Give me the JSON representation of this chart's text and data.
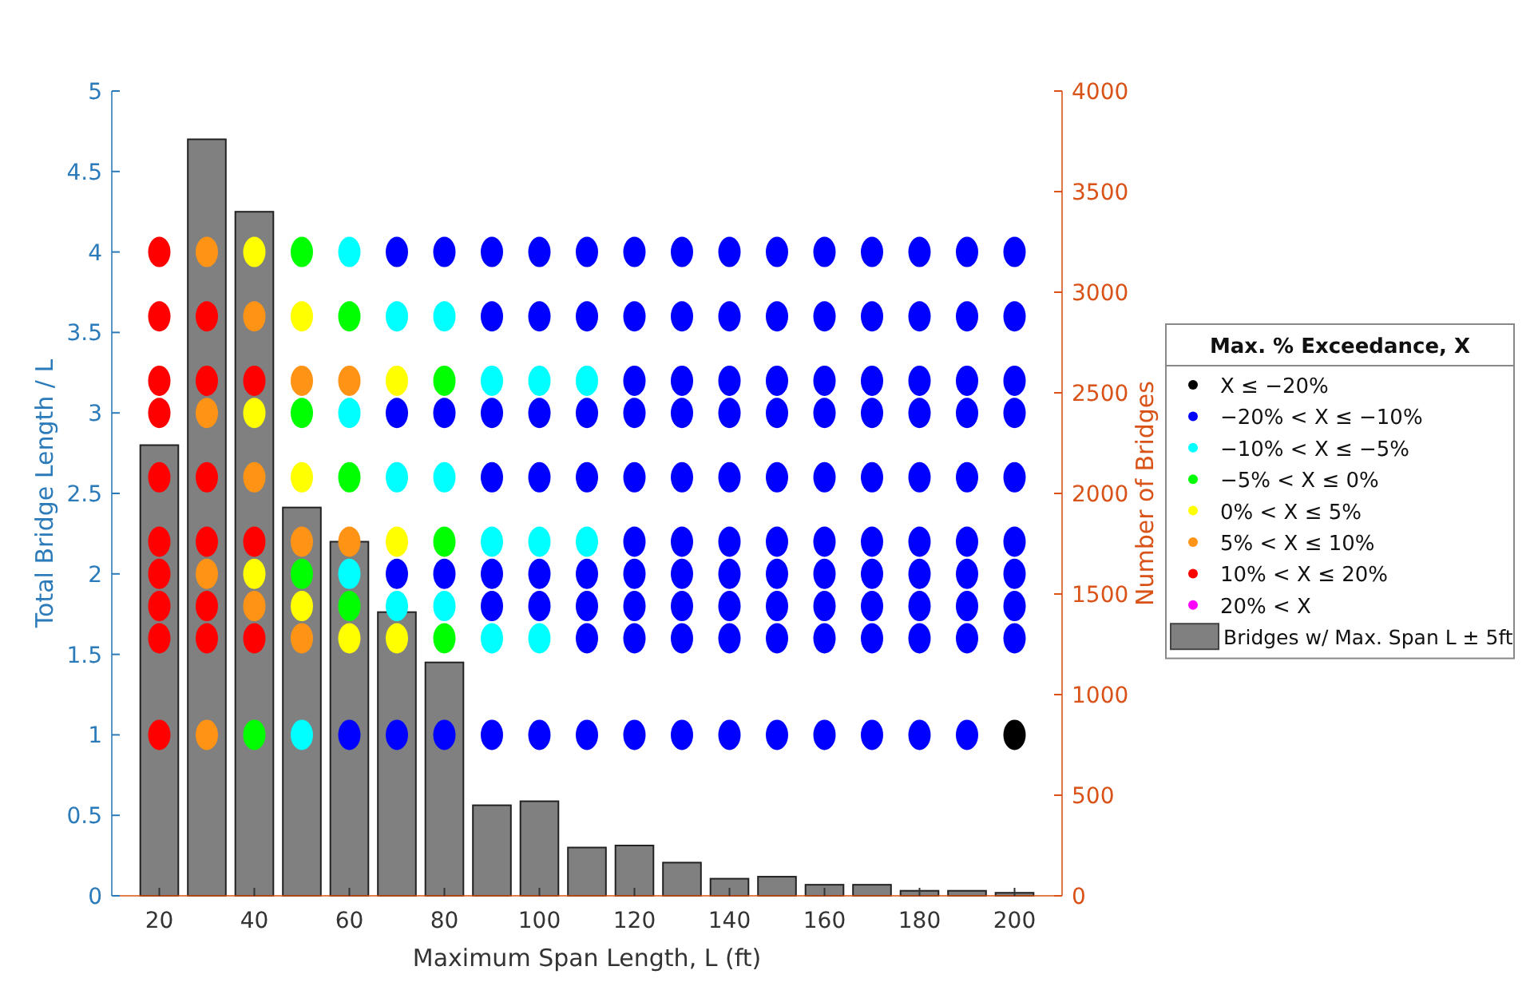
{
  "chart_data": {
    "type": "scatter",
    "xlabel": "Maximum Span Length, L (ft)",
    "ylabel": "Total Bridge Length / L",
    "y2label": "Number of Bridges",
    "legend_title": "Max. % Exceedance, X",
    "legend": "right",
    "grid": false,
    "marker": "circle",
    "xlim": [
      10,
      210
    ],
    "xticks": [
      20,
      40,
      60,
      80,
      100,
      120,
      140,
      160,
      180,
      200
    ],
    "ylim": [
      0,
      5
    ],
    "yticks": [
      0,
      0.5,
      1,
      1.5,
      2,
      2.5,
      3,
      3.5,
      4,
      4.5,
      5
    ],
    "y2lim": [
      0,
      4000
    ],
    "y2ticks": [
      0,
      500,
      1000,
      1500,
      2000,
      2500,
      3000,
      3500,
      4000
    ],
    "x": [
      20,
      30,
      40,
      50,
      60,
      70,
      80,
      90,
      100,
      110,
      120,
      130,
      140,
      150,
      160,
      170,
      180,
      190,
      200
    ],
    "series": [
      {
        "type": "bar",
        "axis": "y2",
        "name": "Bridges w/ Max. Span L ± 5ft",
        "color": "#808080",
        "values": [
          2240,
          3760,
          3400,
          1930,
          1760,
          1410,
          1160,
          450,
          470,
          240,
          250,
          165,
          85,
          95,
          55,
          55,
          25,
          25,
          15
        ]
      },
      {
        "name": "X ≤ −20%",
        "color": "#000000",
        "x": [
          200
        ],
        "values": [
          1
        ]
      },
      {
        "name": "−20% < X ≤ −10%",
        "color": "#0000ff",
        "x": [
          70,
          80,
          90,
          100,
          110,
          120,
          130,
          140,
          150,
          160,
          170,
          180,
          190,
          200,
          90,
          100,
          110,
          120,
          130,
          140,
          150,
          160,
          170,
          180,
          190,
          200,
          120,
          130,
          140,
          150,
          160,
          170,
          180,
          190,
          200,
          70,
          80,
          90,
          100,
          110,
          120,
          130,
          140,
          150,
          160,
          170,
          180,
          190,
          200,
          90,
          100,
          110,
          120,
          130,
          140,
          150,
          160,
          170,
          180,
          190,
          200,
          120,
          130,
          140,
          150,
          160,
          170,
          180,
          190,
          200,
          70,
          80,
          90,
          100,
          110,
          120,
          130,
          140,
          150,
          160,
          170,
          180,
          190,
          200,
          90,
          100,
          110,
          120,
          130,
          140,
          150,
          160,
          170,
          180,
          190,
          200,
          110,
          120,
          130,
          140,
          150,
          160,
          170,
          180,
          190,
          200,
          60,
          70,
          80,
          90,
          100,
          110,
          120,
          130,
          140,
          150,
          160,
          170,
          180,
          190
        ],
        "values": [
          4,
          4,
          4,
          4,
          4,
          4,
          4,
          4,
          4,
          4,
          4,
          4,
          4,
          4,
          3.6,
          3.6,
          3.6,
          3.6,
          3.6,
          3.6,
          3.6,
          3.6,
          3.6,
          3.6,
          3.6,
          3.6,
          3.2,
          3.2,
          3.2,
          3.2,
          3.2,
          3.2,
          3.2,
          3.2,
          3.2,
          3,
          3,
          3,
          3,
          3,
          3,
          3,
          3,
          3,
          3,
          3,
          3,
          3,
          3,
          2.6,
          2.6,
          2.6,
          2.6,
          2.6,
          2.6,
          2.6,
          2.6,
          2.6,
          2.6,
          2.6,
          2.6,
          2.2,
          2.2,
          2.2,
          2.2,
          2.2,
          2.2,
          2.2,
          2.2,
          2.2,
          2,
          2,
          2,
          2,
          2,
          2,
          2,
          2,
          2,
          2,
          2,
          2,
          2,
          2,
          1.8,
          1.8,
          1.8,
          1.8,
          1.8,
          1.8,
          1.8,
          1.8,
          1.8,
          1.8,
          1.8,
          1.8,
          1.6,
          1.6,
          1.6,
          1.6,
          1.6,
          1.6,
          1.6,
          1.6,
          1.6,
          1.6,
          1,
          1,
          1,
          1,
          1,
          1,
          1,
          1,
          1,
          1,
          1,
          1,
          1,
          1
        ]
      },
      {
        "name": "−10% < X ≤ −5%",
        "color": "#00ffff",
        "x": [
          60,
          70,
          80,
          90,
          100,
          110,
          60,
          70,
          80,
          90,
          100,
          110,
          60,
          70,
          80,
          90,
          100,
          50
        ],
        "values": [
          4,
          3.6,
          3.6,
          3.2,
          3.2,
          3.2,
          3,
          2.6,
          2.6,
          2.2,
          2.2,
          2.2,
          2,
          1.8,
          1.8,
          1.6,
          1.6,
          1
        ]
      },
      {
        "name": "−5% < X ≤ 0%",
        "color": "#00ff00",
        "x": [
          50,
          60,
          80,
          50,
          60,
          80,
          50,
          60,
          80,
          40
        ],
        "values": [
          4,
          3.6,
          3.2,
          3,
          2.6,
          2.2,
          2,
          1.8,
          1.6,
          1
        ]
      },
      {
        "name": "0% < X ≤ 5%",
        "color": "#ffff00",
        "x": [
          40,
          50,
          70,
          40,
          50,
          70,
          40,
          50,
          60,
          70
        ],
        "values": [
          4,
          3.6,
          3.2,
          3,
          2.6,
          2.2,
          2,
          1.8,
          1.6,
          1.6
        ]
      },
      {
        "name": "5% < X ≤ 10%",
        "color": "#ff9315",
        "x": [
          30,
          40,
          50,
          60,
          30,
          40,
          50,
          60,
          30,
          40,
          50,
          30
        ],
        "values": [
          4,
          3.6,
          3.2,
          3.2,
          3,
          2.6,
          2.2,
          2.2,
          2,
          1.8,
          1.6,
          1
        ]
      },
      {
        "name": "10% < X ≤ 20%",
        "color": "#ff0000",
        "x": [
          20,
          20,
          30,
          20,
          30,
          40,
          20,
          20,
          30,
          20,
          30,
          40,
          20,
          20,
          30,
          20,
          30,
          40,
          20
        ],
        "values": [
          4,
          3.6,
          3.6,
          3.2,
          3.2,
          3.2,
          3,
          2.6,
          2.6,
          2.2,
          2.2,
          2.2,
          2,
          1.8,
          1.8,
          1.6,
          1.6,
          1.6,
          1
        ]
      },
      {
        "name": "20% < X",
        "color": "#ff00ff",
        "values": [
          null,
          null,
          null,
          null,
          null,
          null,
          null,
          null,
          null,
          null,
          null,
          null,
          null,
          null,
          null,
          null,
          null,
          null,
          null
        ]
      }
    ]
  }
}
